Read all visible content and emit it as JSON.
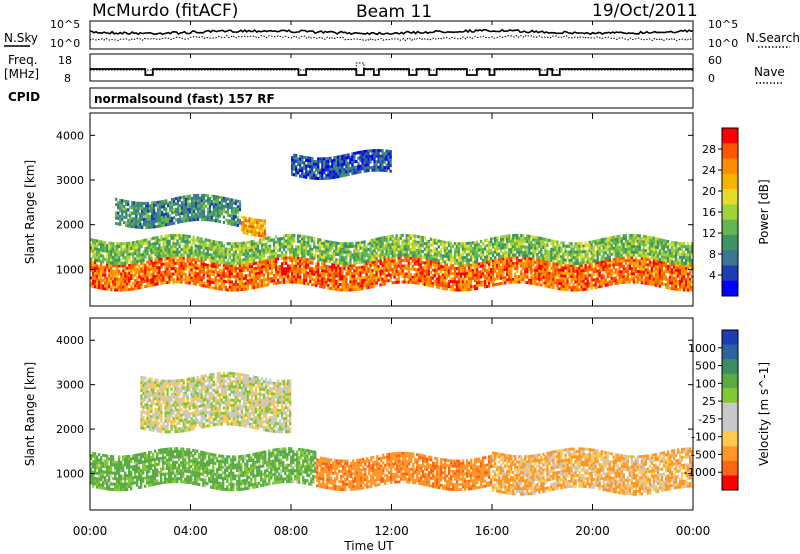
{
  "header": {
    "station": "McMurdo (fitACF)",
    "beam": "Beam 11",
    "date": "19/Oct/2011"
  },
  "noise_panel": {
    "left_label": "N.Sky",
    "left_ticks": [
      "10^5",
      "10^0"
    ],
    "right_ticks": [
      "10^5",
      "10^0"
    ],
    "right_label": "N.Search"
  },
  "freq_panel": {
    "left_label_1": "Freq.",
    "left_label_2": "[MHz]",
    "left_ticks": [
      "18",
      "8"
    ],
    "right_ticks": [
      "60",
      "0"
    ],
    "right_label": "Nave"
  },
  "cpid": {
    "label": "CPID",
    "value": "normalsound (fast) 157 RF"
  },
  "chart_data": [
    {
      "type": "heatmap",
      "name": "Power",
      "ylabel": "Slant Range [km]",
      "yticks": [
        "4000",
        "3000",
        "2000",
        "1000"
      ],
      "ylim": [
        180,
        4500
      ],
      "colorbar": {
        "label": "Power [dB]",
        "ticks": [
          "28",
          "24",
          "20",
          "16",
          "12",
          "8",
          "4"
        ],
        "colors": [
          "#ff0000",
          "#ff5500",
          "#ff8c00",
          "#f5b400",
          "#e6dc28",
          "#a0d23c",
          "#64b450",
          "#3c9664",
          "#3c7896",
          "#1e3cb4",
          "#0000ff"
        ]
      },
      "echo_bands": [
        {
          "x_start_h": 0.0,
          "x_end_h": 24.0,
          "range_km": [
            600,
            1200
          ],
          "level_db": 26
        },
        {
          "x_start_h": 0.0,
          "x_end_h": 24.0,
          "range_km": [
            1200,
            1700
          ],
          "level_db": 14
        },
        {
          "x_start_h": 1.0,
          "x_end_h": 6.0,
          "range_km": [
            2000,
            2600
          ],
          "level_db": 10
        },
        {
          "x_start_h": 6.0,
          "x_end_h": 7.0,
          "range_km": [
            1800,
            2200
          ],
          "level_db": 22
        },
        {
          "x_start_h": 8.0,
          "x_end_h": 12.0,
          "range_km": [
            3100,
            3600
          ],
          "level_db": 6
        }
      ]
    },
    {
      "type": "heatmap",
      "name": "Velocity",
      "ylabel": "Slant Range [km]",
      "yticks": [
        "4000",
        "3000",
        "2000",
        "1000"
      ],
      "ylim": [
        180,
        4500
      ],
      "colorbar": {
        "label": "Velocity [m s^-1]",
        "ticks": [
          "1000",
          "500",
          "100",
          "25",
          "-25",
          "-100",
          "-500",
          "-1000"
        ],
        "colors": [
          "#1e3cb4",
          "#2d64a0",
          "#3c8c64",
          "#5aaa46",
          "#82c832",
          "#c8c8c8",
          "#c8c8c8",
          "#ffc850",
          "#ff9628",
          "#ff6414",
          "#ff0000"
        ]
      },
      "echo_bands": [
        {
          "x_start_h": 0.0,
          "x_end_h": 9.0,
          "range_km": [
            700,
            1500
          ],
          "velocity_ms": 80
        },
        {
          "x_start_h": 9.0,
          "x_end_h": 16.0,
          "range_km": [
            700,
            1400
          ],
          "velocity_ms": -120
        },
        {
          "x_start_h": 16.0,
          "x_end_h": 24.0,
          "range_km": [
            600,
            1500
          ],
          "velocity_ms": -60
        },
        {
          "x_start_h": 2.0,
          "x_end_h": 8.0,
          "range_km": [
            2000,
            3200
          ],
          "velocity_ms": 0
        }
      ],
      "xlabel": "Time UT",
      "xticks": [
        "00:00",
        "04:00",
        "08:00",
        "12:00",
        "16:00",
        "20:00",
        "00:00"
      ]
    }
  ]
}
